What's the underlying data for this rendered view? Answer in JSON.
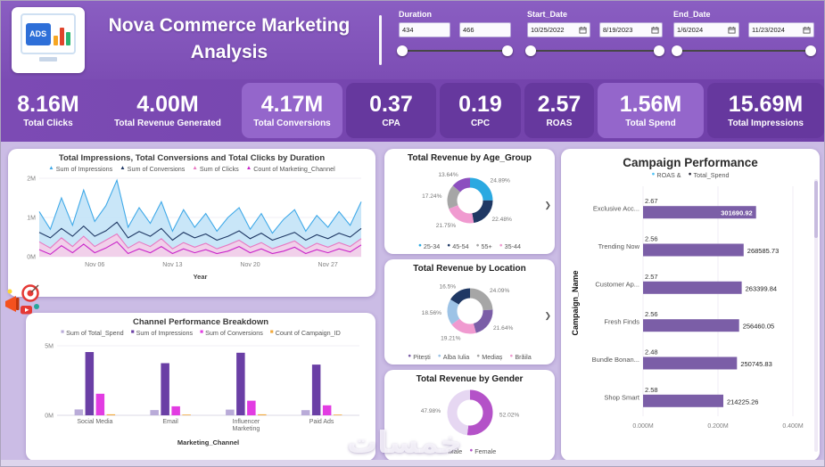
{
  "icons": {
    "chevron_right": "❯"
  },
  "watermark": "خمسات",
  "header": {
    "logo_text": "ADS",
    "title_line1": "Nova Commerce Marketing",
    "title_line2": "Analysis",
    "slicers": [
      {
        "label": "Duration",
        "from": "434",
        "to": "466"
      },
      {
        "label": "Start_Date",
        "from": "10/25/2022",
        "to": "8/19/2023"
      },
      {
        "label": "End_Date",
        "from": "1/6/2024",
        "to": "11/23/2024"
      }
    ]
  },
  "kpis": [
    {
      "value": "8.16M",
      "label": "Total Clicks"
    },
    {
      "value": "4.00M",
      "label": "Total Revenue Generated"
    },
    {
      "value": "4.17M",
      "label": "Total Conversions"
    },
    {
      "value": "0.37",
      "label": "CPA"
    },
    {
      "value": "0.19",
      "label": "CPC"
    },
    {
      "value": "2.57",
      "label": "ROAS"
    },
    {
      "value": "1.56M",
      "label": "Total Spend"
    },
    {
      "value": "15.69M",
      "label": "Total Impressions"
    }
  ],
  "chart_data": [
    {
      "type": "area",
      "title": "Total Impressions, Total Conversions and Total Clicks by Duration",
      "xlabel": "Year",
      "unit": "M",
      "ylim_m": [
        0,
        2
      ],
      "yticks": [
        "0M",
        "1M",
        "2M"
      ],
      "xticks": [
        {
          "label": "Nov 06",
          "index": 5
        },
        {
          "label": "Nov 13",
          "index": 12
        },
        {
          "label": "Nov 20",
          "index": 19
        },
        {
          "label": "Nov 27",
          "index": 26
        }
      ],
      "series": [
        {
          "name": "Sum of Impressions",
          "color": "#3FA9E8",
          "fill": true,
          "fill_color": "#BFE2F7",
          "values_m": [
            1.15,
            0.7,
            1.5,
            0.8,
            1.7,
            0.9,
            1.3,
            1.95,
            0.75,
            1.25,
            0.85,
            1.4,
            0.65,
            1.2,
            0.75,
            1.1,
            0.65,
            1.0,
            1.25,
            0.7,
            1.1,
            0.6,
            0.95,
            1.2,
            0.65,
            1.05,
            0.75,
            1.15,
            0.8,
            1.4
          ]
        },
        {
          "name": "Sum of Conversions",
          "color": "#1F3864",
          "fill": false,
          "values_m": [
            0.62,
            0.48,
            0.72,
            0.52,
            0.78,
            0.52,
            0.66,
            0.88,
            0.48,
            0.64,
            0.52,
            0.72,
            0.42,
            0.62,
            0.48,
            0.58,
            0.42,
            0.52,
            0.66,
            0.46,
            0.6,
            0.42,
            0.52,
            0.62,
            0.42,
            0.56,
            0.46,
            0.6,
            0.5,
            0.72
          ]
        },
        {
          "name": "Sum of Clicks",
          "color": "#E878C2",
          "fill": true,
          "fill_color": "#F8CBE7",
          "values_m": [
            0.38,
            0.22,
            0.48,
            0.26,
            0.52,
            0.26,
            0.42,
            0.58,
            0.22,
            0.38,
            0.26,
            0.46,
            0.2,
            0.36,
            0.24,
            0.34,
            0.2,
            0.3,
            0.42,
            0.24,
            0.36,
            0.2,
            0.3,
            0.4,
            0.2,
            0.34,
            0.24,
            0.36,
            0.26,
            0.46
          ]
        },
        {
          "name": "Count of Marketing_Channel",
          "color": "#C924C9",
          "fill": false,
          "values_m": [
            0.18,
            0.06,
            0.28,
            0.1,
            0.32,
            0.1,
            0.22,
            0.38,
            0.08,
            0.2,
            0.1,
            0.26,
            0.08,
            0.2,
            0.1,
            0.18,
            0.08,
            0.14,
            0.26,
            0.1,
            0.2,
            0.08,
            0.14,
            0.24,
            0.08,
            0.18,
            0.1,
            0.2,
            0.12,
            0.3
          ]
        }
      ]
    },
    {
      "type": "bar",
      "title": "Channel Performance Breakdown",
      "xlabel": "Marketing_Channel",
      "unit": "M",
      "ylim_m": [
        0,
        5
      ],
      "yticks": [
        "0M",
        "5M"
      ],
      "categories": [
        "Social Media",
        "Email",
        "Influencer Marketing",
        "Paid Ads"
      ],
      "series": [
        {
          "name": "Sum of Total_Spend",
          "color": "#B9ABD8",
          "values_m": [
            0.42,
            0.38,
            0.41,
            0.37
          ]
        },
        {
          "name": "Sum of Impressions",
          "color": "#6A3FA5",
          "values_m": [
            4.55,
            3.75,
            4.5,
            3.65
          ]
        },
        {
          "name": "Sum of Conversions",
          "color": "#E23CE2",
          "values_m": [
            1.55,
            0.65,
            1.05,
            0.72
          ]
        },
        {
          "name": "Count of Campaign_ID",
          "color": "#F2A93B",
          "values_m": [
            0.07,
            0.05,
            0.07,
            0.05
          ]
        }
      ]
    },
    {
      "type": "pie",
      "title": "Total Revenue by Age_Group",
      "slices": [
        {
          "label": "25-34",
          "pct": 24.89,
          "text": "24.89%",
          "color": "#2BA9E1"
        },
        {
          "label": "45-54",
          "pct": 22.48,
          "text": "22.48%",
          "color": "#1F3864"
        },
        {
          "label": "35-44",
          "pct": 21.75,
          "text": "21.75%",
          "color": "#F09AD0"
        },
        {
          "label": "55+",
          "pct": 17.24,
          "text": "17.24%",
          "color": "#A6A6A6"
        },
        {
          "label": "",
          "pct": 13.64,
          "text": "13.64%",
          "color": "#8C4FBF"
        }
      ],
      "legend": [
        {
          "label": "25-34",
          "color": "#2BA9E1"
        },
        {
          "label": "45-54",
          "color": "#1F3864"
        },
        {
          "label": "55+",
          "color": "#A6A6A6"
        },
        {
          "label": "35-44",
          "color": "#F09AD0"
        }
      ],
      "legend_overflow": true
    },
    {
      "type": "pie",
      "title": "Total Revenue by Location",
      "slices": [
        {
          "label": "Mediaș",
          "pct": 24.09,
          "text": "24.09%",
          "color": "#A6A6A6"
        },
        {
          "label": "Pitești",
          "pct": 21.64,
          "text": "21.64%",
          "color": "#7B5EA7"
        },
        {
          "label": "Brăila",
          "pct": 19.21,
          "text": "19.21%",
          "color": "#F09AD0"
        },
        {
          "label": "Alba Iulia",
          "pct": 18.56,
          "text": "18.56%",
          "color": "#9DC3E6"
        },
        {
          "label": "",
          "pct": 16.5,
          "text": "16.5%",
          "color": "#1F3864"
        }
      ],
      "legend": [
        {
          "label": "Pitești",
          "color": "#7B5EA7"
        },
        {
          "label": "Alba Iulia",
          "color": "#9DC3E6"
        },
        {
          "label": "Mediaș",
          "color": "#A6A6A6"
        },
        {
          "label": "Brăila",
          "color": "#F09AD0"
        }
      ],
      "legend_overflow": true
    },
    {
      "type": "pie",
      "title": "Total Revenue by Gender",
      "slices": [
        {
          "label": "Female",
          "pct": 52.02,
          "text": "52.02%",
          "color": "#B452C8"
        },
        {
          "label": "Male",
          "pct": 47.98,
          "text": "47.98%",
          "color": "#E6D7F2"
        }
      ],
      "legend": [
        {
          "label": "Male",
          "color": "#E6D7F2"
        },
        {
          "label": "Female",
          "color": "#B452C8"
        }
      ],
      "legend_overflow": false
    },
    {
      "type": "bar_h",
      "title": "Campaign Performance",
      "ylabel": "Campaign_Name",
      "bar_color": "#7B5EA7",
      "xlim_m": [
        0,
        0.4
      ],
      "xticks": [
        "0.000M",
        "0.200M",
        "0.400M"
      ],
      "legend": [
        {
          "label": "ROAS  &",
          "color": "#4FC3F7"
        },
        {
          "label": "Total_Spend",
          "color": "#2B2B3A"
        }
      ],
      "categories": [
        "Exclusive Acc...",
        "Trending Now",
        "Customer Ap...",
        "Fresh Finds",
        "Bundle Bonan...",
        "Shop Smart"
      ],
      "roas": [
        "2.67",
        "2.56",
        "2.57",
        "2.56",
        "2.48",
        "2.58"
      ],
      "total_spend": [
        301690.92,
        268585.73,
        263399.84,
        256460.05,
        250745.83,
        214225.26
      ],
      "spend_labels": [
        "301690.92",
        "268585.73",
        "263399.84",
        "256460.05",
        "250745.83",
        "214225.26"
      ],
      "spend_label_inside": [
        true,
        false,
        false,
        false,
        false,
        false
      ]
    }
  ]
}
